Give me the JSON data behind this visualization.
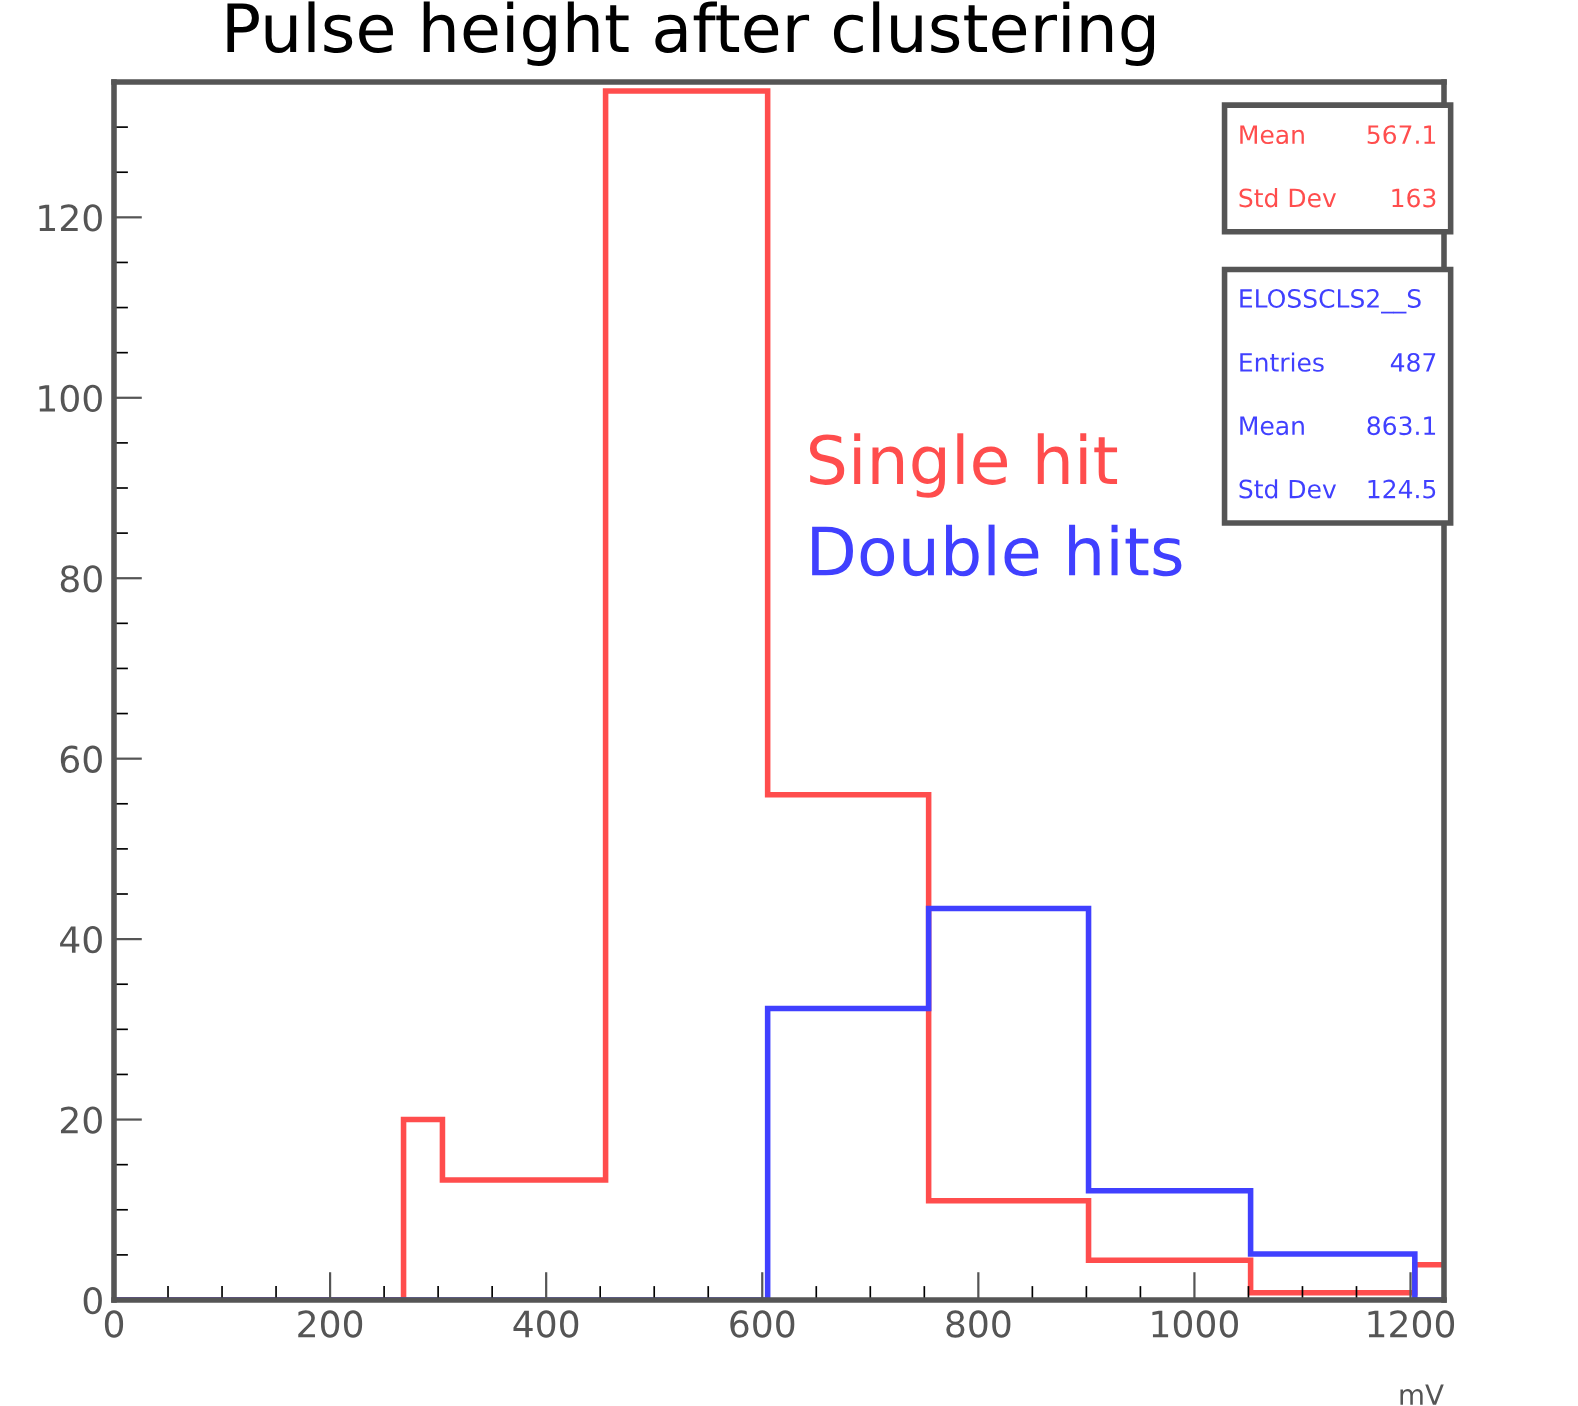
{
  "chart_data": {
    "type": "histogram",
    "title": "Pulse height after clustering",
    "xlabel": "mV",
    "bins": [
      0,
      268,
      304,
      455,
      605,
      754,
      902,
      1052,
      1204,
      1231
    ],
    "series": [
      {
        "name": "Single hit",
        "color": "#ff4d4d",
        "values": [
          0,
          20,
          13.3,
          134,
          56,
          11,
          4.4,
          0.8,
          3.9
        ]
      },
      {
        "name": "Double hits",
        "color": "#4040ff",
        "values": [
          0,
          0,
          0,
          0,
          32.3,
          43.4,
          12.1,
          5.1,
          0
        ]
      }
    ],
    "xlim": [
      0,
      1231
    ],
    "xticks": [
      0,
      200,
      400,
      600,
      800,
      1000,
      1200
    ],
    "ylim": [
      0,
      135
    ],
    "yticks": [
      0,
      20,
      40,
      60,
      80,
      100,
      120
    ],
    "annotations": [
      "Mean 567.1",
      "Std Dev 163",
      "ELOSSCLS2__S",
      "Entries 487",
      "Mean 863.1",
      "Std Dev 124.5"
    ],
    "grid": false,
    "legend": false
  }
}
